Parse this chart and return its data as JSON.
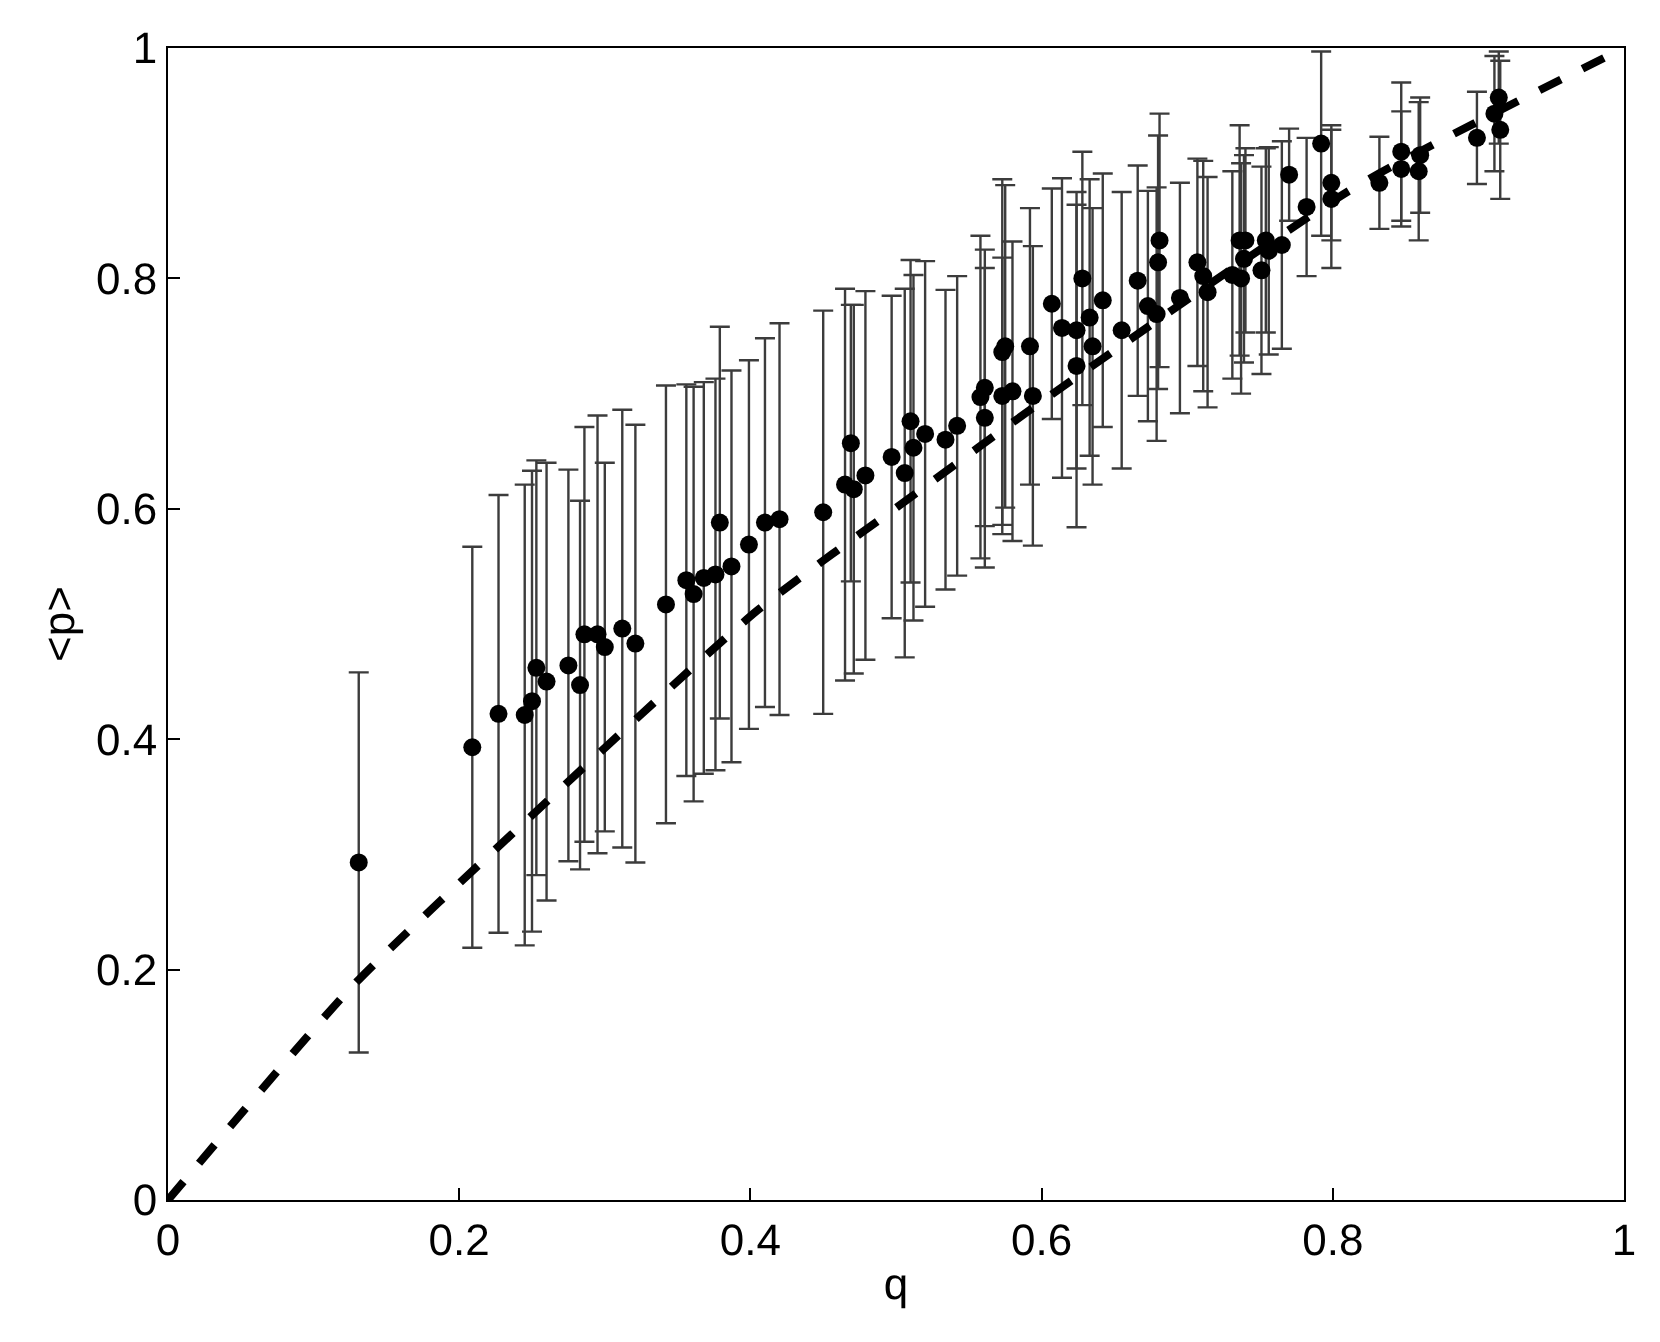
{
  "chart_data": {
    "type": "scatter",
    "xlabel": "q",
    "ylabel": "<p>",
    "xlim": [
      0,
      1
    ],
    "ylim": [
      0,
      1
    ],
    "xticks": [
      0,
      0.2,
      0.4,
      0.6,
      0.8,
      1
    ],
    "yticks": [
      0,
      0.2,
      0.4,
      0.6,
      0.8,
      1
    ],
    "series": [
      {
        "marker": "circle",
        "color": "#000000",
        "x": [
          0.131,
          0.209,
          0.227,
          0.245,
          0.25,
          0.253,
          0.26,
          0.275,
          0.283,
          0.286,
          0.295,
          0.3,
          0.312,
          0.321,
          0.342,
          0.356,
          0.361,
          0.368,
          0.376,
          0.379,
          0.387,
          0.399,
          0.41,
          0.42,
          0.45,
          0.465,
          0.469,
          0.471,
          0.479,
          0.497,
          0.506,
          0.51,
          0.512,
          0.52,
          0.534,
          0.542,
          0.558,
          0.561,
          0.561,
          0.573,
          0.573,
          0.575,
          0.58,
          0.592,
          0.594,
          0.607,
          0.614,
          0.624,
          0.624,
          0.628,
          0.633,
          0.635,
          0.642,
          0.655,
          0.666,
          0.673,
          0.68,
          0.679,
          0.695,
          0.681,
          0.707,
          0.711,
          0.714,
          0.731,
          0.736,
          0.74,
          0.739,
          0.737,
          0.751,
          0.754,
          0.756,
          0.765,
          0.77,
          0.782,
          0.792,
          0.799,
          0.799,
          0.832,
          0.847,
          0.847,
          0.859,
          0.86,
          0.899,
          0.914,
          0.911,
          0.915
        ],
        "values": [
          0.293,
          0.393,
          0.422,
          0.421,
          0.433,
          0.462,
          0.45,
          0.464,
          0.447,
          0.491,
          0.491,
          0.48,
          0.496,
          0.483,
          0.517,
          0.538,
          0.526,
          0.54,
          0.543,
          0.588,
          0.55,
          0.569,
          0.588,
          0.591,
          0.597,
          0.621,
          0.657,
          0.617,
          0.629,
          0.645,
          0.631,
          0.676,
          0.653,
          0.665,
          0.66,
          0.672,
          0.697,
          0.705,
          0.679,
          0.698,
          0.736,
          0.741,
          0.702,
          0.741,
          0.698,
          0.778,
          0.757,
          0.755,
          0.724,
          0.8,
          0.766,
          0.741,
          0.781,
          0.755,
          0.798,
          0.776,
          0.814,
          0.769,
          0.783,
          0.833,
          0.814,
          0.802,
          0.788,
          0.803,
          0.833,
          0.833,
          0.817,
          0.8,
          0.807,
          0.833,
          0.824,
          0.829,
          0.89,
          0.862,
          0.917,
          0.883,
          0.869,
          0.883,
          0.91,
          0.895,
          0.893,
          0.907,
          0.922,
          0.957,
          0.943,
          0.929
        ],
        "errors": [
          0.165,
          0.174,
          0.19,
          0.2,
          0.2,
          0.18,
          0.19,
          0.17,
          0.16,
          0.18,
          0.19,
          0.16,
          0.19,
          0.19,
          0.19,
          0.17,
          0.18,
          0.17,
          0.17,
          0.17,
          0.17,
          0.16,
          0.16,
          0.17,
          0.175,
          0.17,
          0.12,
          0.16,
          0.16,
          0.14,
          0.16,
          0.14,
          0.15,
          0.15,
          0.13,
          0.13,
          0.14,
          0.12,
          0.13,
          0.12,
          0.15,
          0.14,
          0.13,
          0.12,
          0.13,
          0.1,
          0.13,
          0.12,
          0.14,
          0.11,
          0.12,
          0.12,
          0.11,
          0.12,
          0.1,
          0.1,
          0.11,
          0.11,
          0.1,
          0.11,
          0.09,
          0.1,
          0.1,
          0.09,
          0.1,
          0.08,
          0.09,
          0.1,
          0.09,
          0.08,
          0.09,
          0.09,
          0.04,
          0.06,
          0.08,
          0.05,
          0.06,
          0.04,
          0.06,
          0.05,
          0.06,
          0.05,
          0.04,
          0.04,
          0.05,
          0.06
        ]
      },
      {
        "type": "line",
        "marker": "none",
        "line_style": "dashed",
        "color": "#000000",
        "x": [
          0,
          0.127,
          0.245,
          0.405,
          0.51,
          0.6,
          0.815,
          1
        ],
        "values": [
          0,
          0.186,
          0.328,
          0.512,
          0.61,
          0.693,
          0.879,
          1
        ]
      }
    ]
  }
}
